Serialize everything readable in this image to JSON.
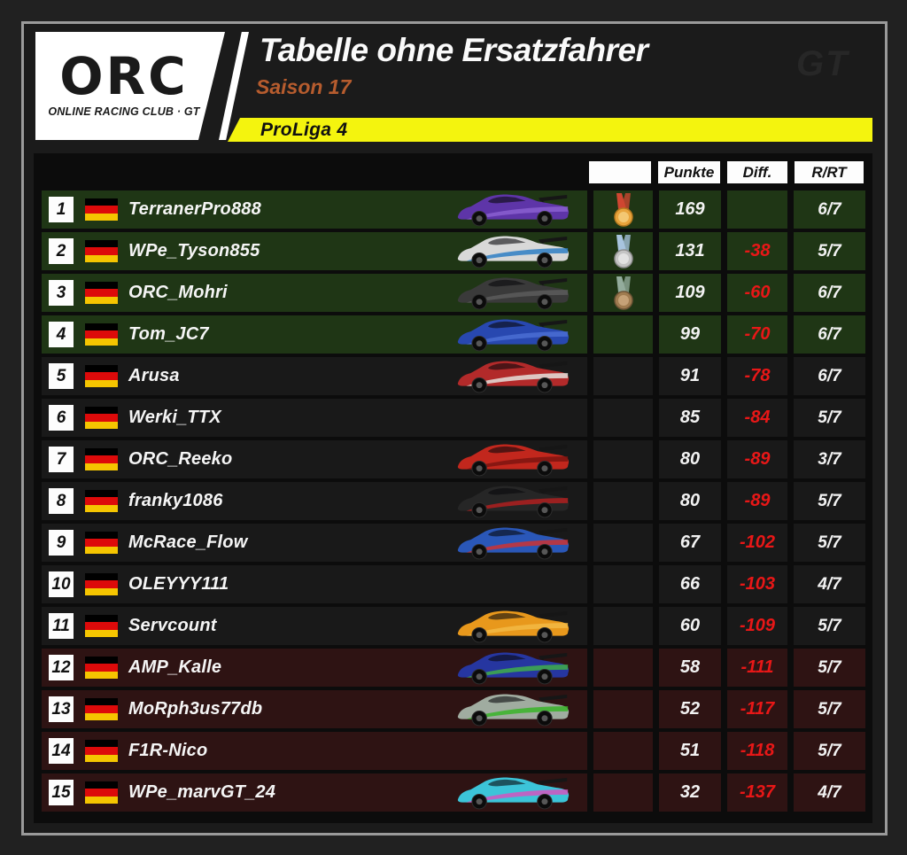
{
  "header": {
    "logo": {
      "acronym": "ORC",
      "subtitle": "ONLINE RACING CLUB · GT"
    },
    "title": "Tabelle ohne Ersatzfahrer",
    "season": "Saison 17",
    "league": "ProLiga 4",
    "watermark": "GT"
  },
  "colors": {
    "page_background": "#212121",
    "panel_background": "#1b1b1b",
    "table_background": "#0c0c0c",
    "frame_border": "#9a9a9a",
    "accent_yellow": "#f4f40e",
    "season_orange": "#b65c2e",
    "diff_red": "#e81717",
    "zones": {
      "green": "#1f3615",
      "dark": "#191919",
      "red": "#2e1313"
    },
    "flag": [
      "#000000",
      "#dd0a0a",
      "#f5c500"
    ],
    "medals": {
      "gold": {
        "ribbon": "#cf4631",
        "disc": "#e8a43c",
        "inner": "#f3c873",
        "rim": "#b5791f"
      },
      "silver": {
        "ribbon": "#a8c4de",
        "disc": "#c4c4c4",
        "inner": "#e2e2e2",
        "rim": "#8e8e8e"
      },
      "bronze": {
        "ribbon": "#93ac9c",
        "disc": "#a07c50",
        "inner": "#c6a277",
        "rim": "#6e5436"
      }
    }
  },
  "chart_data": {
    "type": "table",
    "title": "Tabelle ohne Ersatzfahrer — Saison 17 — ProLiga 4",
    "columns": [
      "",
      "Punkte",
      "Diff.",
      "R/RT"
    ],
    "rows": [
      {
        "pos": "1",
        "driver": "TerranerPro888",
        "medal": "gold",
        "punkte": "169",
        "diff": "",
        "rrt": "6/7",
        "zone": "green",
        "car": {
          "name": "purple-gt-car",
          "main": "#5e35a8",
          "accent": "#8a5fd0"
        }
      },
      {
        "pos": "2",
        "driver": "WPe_Tyson855",
        "medal": "silver",
        "punkte": "131",
        "diff": "-38",
        "rrt": "5/7",
        "zone": "green",
        "car": {
          "name": "white-blue-gt-car",
          "main": "#d8d8d8",
          "accent": "#2f7fc4"
        }
      },
      {
        "pos": "3",
        "driver": "ORC_Mohri",
        "medal": "bronze",
        "punkte": "109",
        "diff": "-60",
        "rrt": "6/7",
        "zone": "green",
        "car": {
          "name": "black-sony-gt-car",
          "main": "#3a3a3a",
          "accent": "#5c5c5c"
        }
      },
      {
        "pos": "4",
        "driver": "Tom_JC7",
        "medal": null,
        "punkte": "99",
        "diff": "-70",
        "rrt": "6/7",
        "zone": "green",
        "car": {
          "name": "blue-gt-car",
          "main": "#2848b0",
          "accent": "#4a6fd4"
        }
      },
      {
        "pos": "5",
        "driver": "Arusa",
        "medal": null,
        "punkte": "91",
        "diff": "-78",
        "rrt": "6/7",
        "zone": "dark",
        "car": {
          "name": "red-white-gt-car",
          "main": "#b22a2a",
          "accent": "#e4e0dc"
        }
      },
      {
        "pos": "6",
        "driver": "Werki_TTX",
        "medal": null,
        "punkte": "85",
        "diff": "-84",
        "rrt": "5/7",
        "zone": "dark",
        "car": null
      },
      {
        "pos": "7",
        "driver": "ORC_Reeko",
        "medal": null,
        "punkte": "80",
        "diff": "-89",
        "rrt": "3/7",
        "zone": "dark",
        "car": {
          "name": "red-porsche-gt-car",
          "main": "#c2271d",
          "accent": "#7e1510"
        }
      },
      {
        "pos": "8",
        "driver": "franky1086",
        "medal": null,
        "punkte": "80",
        "diff": "-89",
        "rrt": "5/7",
        "zone": "dark",
        "car": {
          "name": "black-red-gt-car",
          "main": "#262626",
          "accent": "#b02020"
        }
      },
      {
        "pos": "9",
        "driver": "McRace_Flow",
        "medal": null,
        "punkte": "67",
        "diff": "-102",
        "rrt": "5/7",
        "zone": "dark",
        "car": {
          "name": "blue-red-gt-car",
          "main": "#2a57b8",
          "accent": "#cc3333"
        }
      },
      {
        "pos": "10",
        "driver": "OLEYYY111",
        "medal": null,
        "punkte": "66",
        "diff": "-103",
        "rrt": "4/7",
        "zone": "dark",
        "car": null
      },
      {
        "pos": "11",
        "driver": "Servcount",
        "medal": null,
        "punkte": "60",
        "diff": "-109",
        "rrt": "5/7",
        "zone": "dark",
        "car": {
          "name": "orange-amg-gt-car",
          "main": "#e8981c",
          "accent": "#f2b844"
        }
      },
      {
        "pos": "12",
        "driver": "AMP_Kalle",
        "medal": null,
        "punkte": "58",
        "diff": "-111",
        "rrt": "5/7",
        "zone": "red",
        "car": {
          "name": "blue-green-gt-car",
          "main": "#2636a0",
          "accent": "#3fae4a"
        }
      },
      {
        "pos": "13",
        "driver": "MoRph3us77db",
        "medal": null,
        "punkte": "52",
        "diff": "-117",
        "rrt": "5/7",
        "zone": "red",
        "car": {
          "name": "silver-green-gt-car",
          "main": "#a0aca0",
          "accent": "#38b428"
        }
      },
      {
        "pos": "14",
        "driver": "F1R-Nico",
        "medal": null,
        "punkte": "51",
        "diff": "-118",
        "rrt": "5/7",
        "zone": "red",
        "car": null
      },
      {
        "pos": "15",
        "driver": "WPe_marvGT_24",
        "medal": null,
        "punkte": "32",
        "diff": "-137",
        "rrt": "4/7",
        "zone": "red",
        "car": {
          "name": "cyan-pink-gt-car",
          "main": "#3cc4d8",
          "accent": "#d455c0"
        }
      }
    ]
  }
}
